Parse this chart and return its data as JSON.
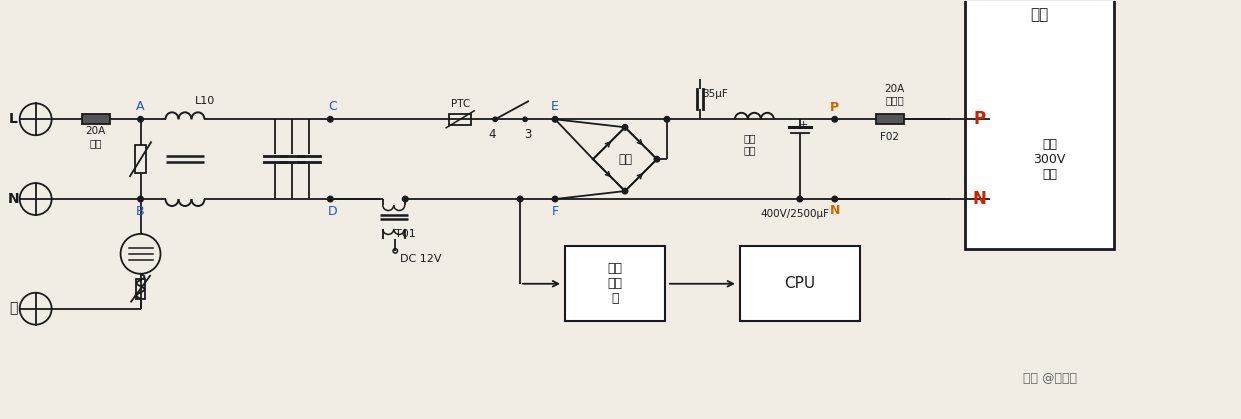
{
  "bg_color": "#f2ede4",
  "line_color": "#1a1a1a",
  "blue_color": "#2255cc",
  "red_color": "#cc2200",
  "orange_color": "#cc6600",
  "watermark": "头条 @维修圈",
  "labels": {
    "L": "L",
    "N": "N",
    "Di": "地",
    "A": "A",
    "B": "B",
    "C": "C",
    "D": "D",
    "E": "E",
    "F": "F",
    "fuse20A": "20A\n保险",
    "L10": "L10",
    "PTC": "PTC",
    "T01": "T01",
    "num3": "3",
    "num4": "4",
    "DC12V": "DC 12V",
    "silicon_bridge": "硅桥",
    "filter_inductor": "滤波\n电感",
    "cap35": "35μF",
    "cap400": "400V/2500μF",
    "fuse20A_2": "20A\n保险管",
    "F02": "F02",
    "module_text": "模块",
    "dc300v": "直流\n300V\n电压",
    "P_label": "P",
    "N_label": "N",
    "fanxiang": "反相\n驱动\n器",
    "CPU": "CPU"
  }
}
